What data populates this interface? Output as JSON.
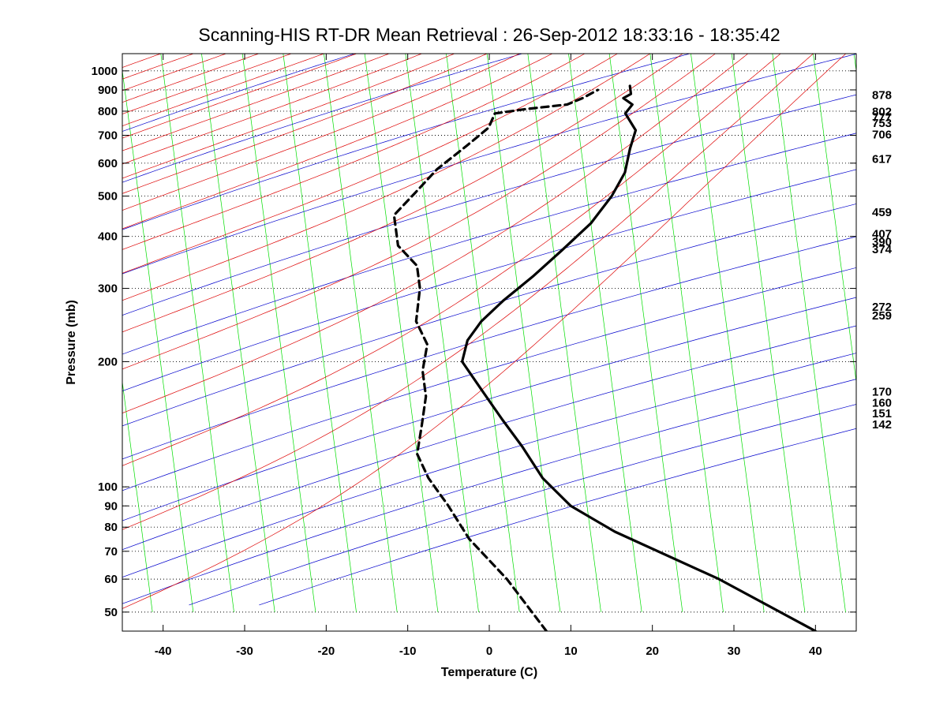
{
  "chart_data": {
    "type": "line",
    "title": "Scanning-HIS RT-DR Mean Retrieval : 26-Sep-2012 18:33:16 - 18:35:42",
    "xlabel": "Temperature (C)",
    "ylabel": "Pressure (mb)",
    "x_scale": "skew-t (isotherms skewed)",
    "y_scale": "log",
    "xlim": [
      -45,
      45
    ],
    "ylim": [
      1100,
      45
    ],
    "x_ticks": [
      "-40",
      "-30",
      "-20",
      "-10",
      "0",
      "10",
      "20",
      "30",
      "40"
    ],
    "y_ticks": [
      "50",
      "60",
      "70",
      "80",
      "90",
      "100",
      "200",
      "300",
      "400",
      "500",
      "600",
      "700",
      "800",
      "900",
      "1000"
    ],
    "grid": "horizontal dotted lines at pressure ticks",
    "background_lines": {
      "isotherms_color": "#00dd00",
      "dry_adiabats_color": "#0000cc",
      "moist_adiabats_color": "#dd0000"
    },
    "right_labels": [
      "142",
      "151",
      "160",
      "170",
      "259",
      "272",
      "374",
      "390",
      "407",
      "459",
      "617",
      "706",
      "753",
      "777",
      "802",
      "878"
    ],
    "series": [
      {
        "style": "solid",
        "color": "#000000",
        "points": [
          [
            31,
            45
          ],
          [
            20,
            60
          ],
          [
            8,
            78
          ],
          [
            3,
            90
          ],
          [
            0,
            105
          ],
          [
            -2,
            125
          ],
          [
            -4,
            145
          ],
          [
            -6,
            170
          ],
          [
            -8,
            200
          ],
          [
            -7,
            225
          ],
          [
            -5,
            250
          ],
          [
            -2,
            280
          ],
          [
            2,
            320
          ],
          [
            6,
            370
          ],
          [
            10,
            430
          ],
          [
            13,
            500
          ],
          [
            15,
            570
          ],
          [
            16,
            650
          ],
          [
            17,
            720
          ],
          [
            16,
            790
          ],
          [
            17,
            830
          ],
          [
            16,
            860
          ],
          [
            17,
            880
          ],
          [
            17,
            920
          ]
        ]
      },
      {
        "style": "dashed",
        "color": "#000000",
        "points": [
          [
            -2,
            45
          ],
          [
            -6,
            60
          ],
          [
            -10,
            75
          ],
          [
            -12,
            90
          ],
          [
            -14,
            105
          ],
          [
            -15,
            120
          ],
          [
            -14,
            140
          ],
          [
            -13,
            165
          ],
          [
            -13,
            190
          ],
          [
            -12,
            220
          ],
          [
            -13,
            250
          ],
          [
            -12,
            300
          ],
          [
            -12,
            340
          ],
          [
            -14,
            380
          ],
          [
            -14,
            450
          ],
          [
            -11,
            510
          ],
          [
            -8,
            580
          ],
          [
            -4,
            660
          ],
          [
            -1,
            730
          ],
          [
            0,
            790
          ],
          [
            4,
            810
          ],
          [
            9,
            830
          ],
          [
            11,
            860
          ],
          [
            13,
            900
          ]
        ]
      }
    ]
  }
}
